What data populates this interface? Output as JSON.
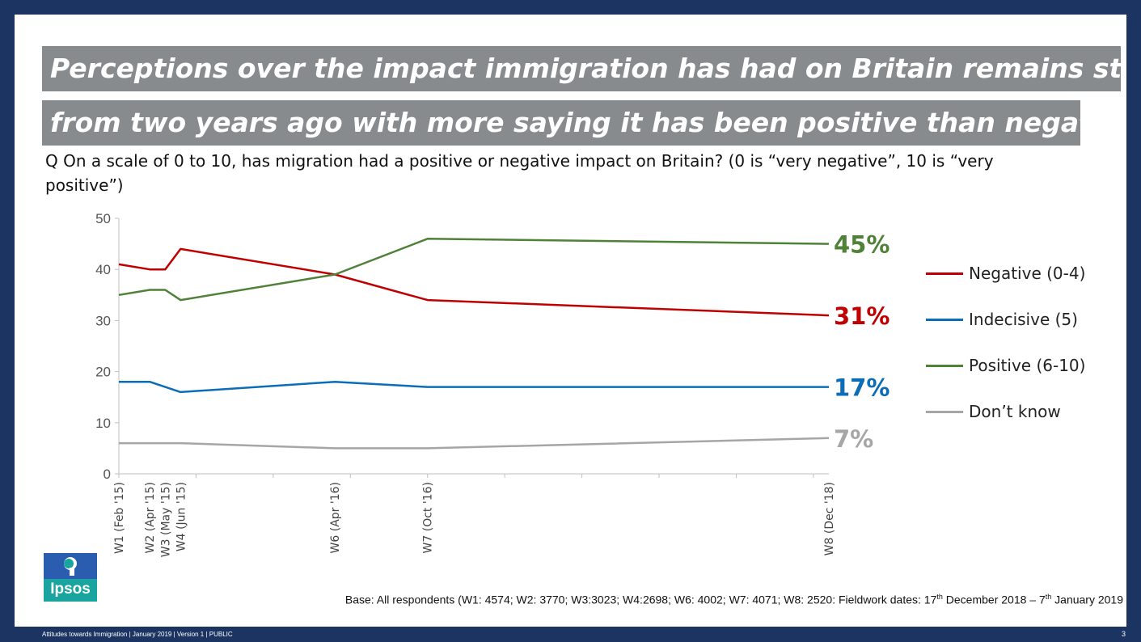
{
  "title": {
    "line1": "Perceptions over the impact immigration has had on Britain remains stable",
    "line2": "from two years ago with more saying it has been positive than negative"
  },
  "question": "Q On a scale of 0 to 10, has migration had a positive or negative impact on Britain? (0 is “very negative”, 10 is “very positive”)",
  "chart_data": {
    "type": "line",
    "title": "",
    "xlabel": "",
    "ylabel": "",
    "ylim": [
      0,
      50
    ],
    "yticks": [
      "0",
      "10",
      "20",
      "30",
      "40",
      "50"
    ],
    "categories": [
      "W1 (Feb '15)",
      "W2 (Apr '15)",
      "W3 (May '15)",
      "W4 (Jun '15)",
      "W6 (Apr '16)",
      "W7 (Oct '16)",
      "W8 (Dec '18)"
    ],
    "x_months": [
      0,
      2,
      3,
      4,
      14,
      20,
      46
    ],
    "series": [
      {
        "name": "Negative (0-4)",
        "color": "#c00000",
        "values": [
          41,
          40,
          40,
          44,
          39,
          34,
          31
        ],
        "end_label": "31%"
      },
      {
        "name": "Indecisive (5)",
        "color": "#0b6db8",
        "values": [
          18,
          18,
          17,
          16,
          18,
          17,
          17
        ],
        "end_label": "17%"
      },
      {
        "name": "Positive (6-10)",
        "color": "#4f8139",
        "values": [
          35,
          36,
          36,
          34,
          39,
          46,
          45
        ],
        "end_label": "45%"
      },
      {
        "name": "Don’t know",
        "color": "#a6a6a6",
        "values": [
          6,
          6,
          6,
          6,
          5,
          5,
          7
        ],
        "end_label": "7%"
      }
    ],
    "legend_position": "right"
  },
  "legend": {
    "items": [
      {
        "label": "Negative (0-4)",
        "color": "#c00000"
      },
      {
        "label": "Indecisive (5)",
        "color": "#0b6db8"
      },
      {
        "label": "Positive (6-10)",
        "color": "#4f8139"
      },
      {
        "label": "Don’t know",
        "color": "#a6a6a6"
      }
    ]
  },
  "logo": {
    "text": "Ipsos"
  },
  "base_note": {
    "part1": "Base: All respondents (W1: 4574; W2: 3770; W3:3023; W4:2698; W6: 4002; W7: 4071; W8: 2520: Fieldwork dates: 17",
    "sup1": "th",
    "part2": " December 2018 – 7",
    "sup2": "th",
    "part3": " January 2019"
  },
  "footer": {
    "left": "Attitudes towards Immigration | January 2019 | Version 1 | PUBLIC",
    "page": "3"
  }
}
